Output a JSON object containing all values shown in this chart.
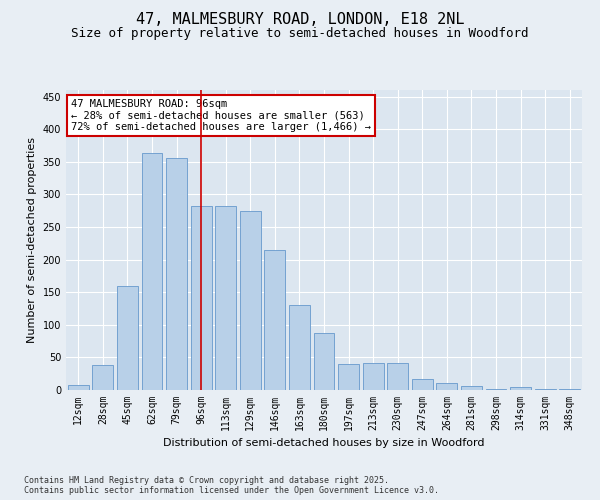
{
  "title_line1": "47, MALMESBURY ROAD, LONDON, E18 2NL",
  "title_line2": "Size of property relative to semi-detached houses in Woodford",
  "xlabel": "Distribution of semi-detached houses by size in Woodford",
  "ylabel": "Number of semi-detached properties",
  "categories": [
    "12sqm",
    "28sqm",
    "45sqm",
    "62sqm",
    "79sqm",
    "96sqm",
    "113sqm",
    "129sqm",
    "146sqm",
    "163sqm",
    "180sqm",
    "197sqm",
    "213sqm",
    "230sqm",
    "247sqm",
    "264sqm",
    "281sqm",
    "298sqm",
    "314sqm",
    "331sqm",
    "348sqm"
  ],
  "values": [
    7,
    38,
    160,
    363,
    355,
    282,
    282,
    275,
    215,
    130,
    87,
    40,
    42,
    42,
    17,
    11,
    6,
    2,
    4,
    2,
    2
  ],
  "bar_color": "#b8d0e8",
  "bar_edge_color": "#6699cc",
  "highlight_bar_index": 5,
  "highlight_line_color": "#cc0000",
  "annotation_text": "47 MALMESBURY ROAD: 96sqm\n← 28% of semi-detached houses are smaller (563)\n72% of semi-detached houses are larger (1,466) →",
  "annotation_box_color": "#ffffff",
  "annotation_box_edge_color": "#cc0000",
  "ylim": [
    0,
    460
  ],
  "yticks": [
    0,
    50,
    100,
    150,
    200,
    250,
    300,
    350,
    400,
    450
  ],
  "background_color": "#e8eef4",
  "plot_background_color": "#dce6f0",
  "grid_color": "#ffffff",
  "footer_text": "Contains HM Land Registry data © Crown copyright and database right 2025.\nContains public sector information licensed under the Open Government Licence v3.0.",
  "title_fontsize": 11,
  "subtitle_fontsize": 9,
  "axis_label_fontsize": 8,
  "tick_fontsize": 7,
  "annotation_fontsize": 7.5
}
